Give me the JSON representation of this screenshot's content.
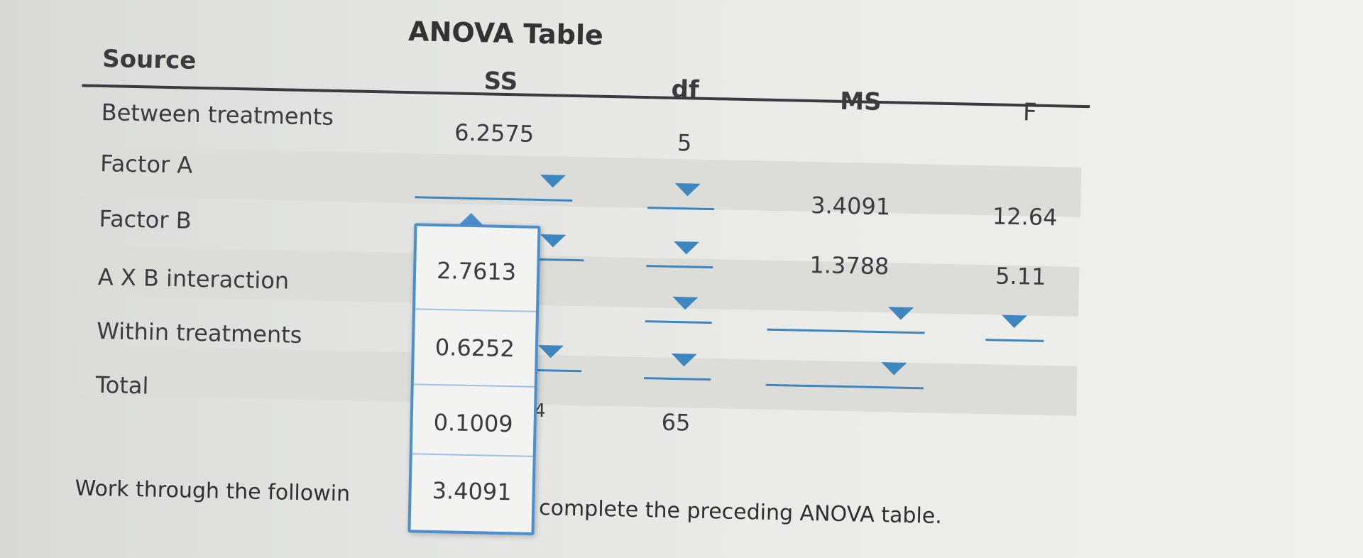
{
  "table": {
    "title": "ANOVA Table",
    "headers": {
      "source": "Source",
      "ss": "SS",
      "df": "df",
      "ms": "MS",
      "f": "F"
    },
    "rows": [
      {
        "source": "Between treatments",
        "ss": "6.2575",
        "df": "5",
        "ms": "",
        "f": ""
      },
      {
        "source": "Factor A",
        "ss": "",
        "df": "",
        "ms": "3.4091",
        "f": "12.64"
      },
      {
        "source": "Factor B",
        "ss": "",
        "df": "",
        "ms": "1.3788",
        "f": "5.11"
      },
      {
        "source": "A X B interaction",
        "ss": "",
        "df": "",
        "ms": "",
        "f": ""
      },
      {
        "source": "Within treatments",
        "ss": "",
        "df": "",
        "ms": "",
        "f": ""
      },
      {
        "source": "Total",
        "ss": "",
        "df": "65",
        "ms": "",
        "f": ""
      }
    ],
    "total_ss_partial": "4"
  },
  "dropdown_popup": {
    "options": [
      "2.7613",
      "0.6252",
      "0.1009",
      "3.4091"
    ]
  },
  "instructions": {
    "text_before": "Work through the followin",
    "text_after": "complete the preceding ANOVA table."
  },
  "colors": {
    "accent": "#3d86c0",
    "popup_border": "#4c8fcf",
    "band": "#dcdcd9"
  }
}
